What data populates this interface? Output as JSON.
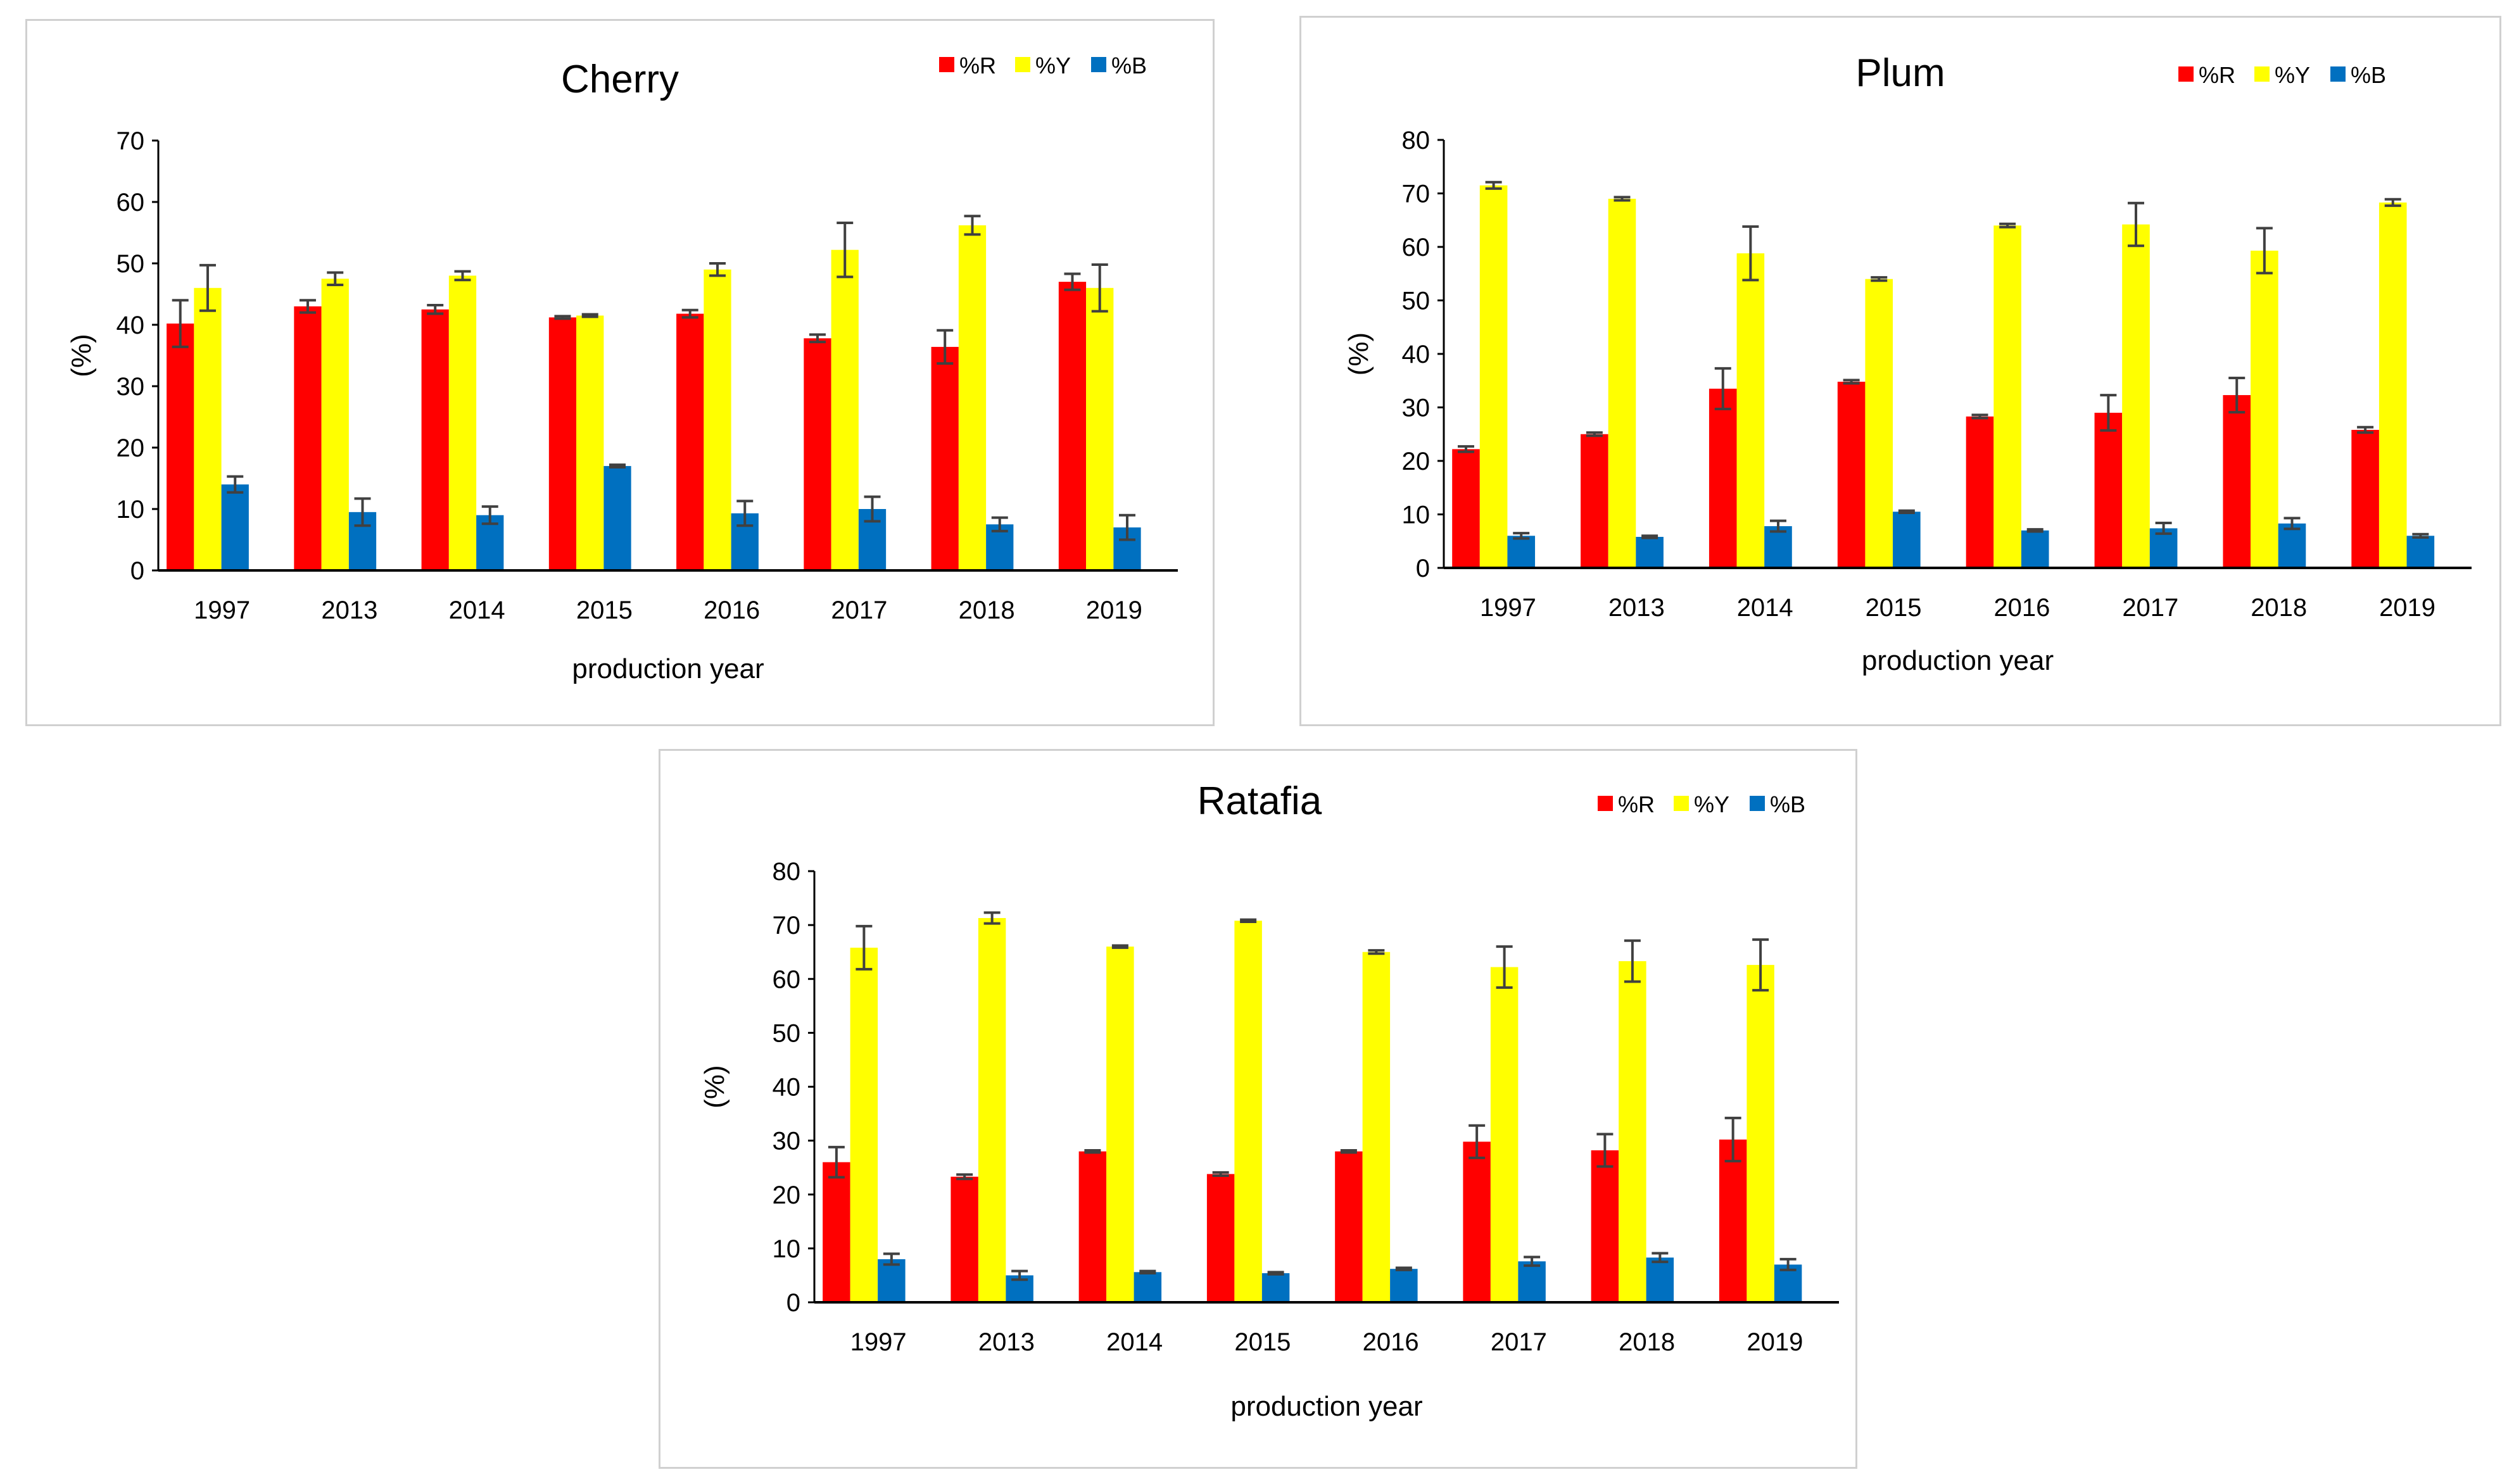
{
  "chart_data": [
    {
      "type": "bar",
      "title": "Cherry",
      "xlabel": "production year",
      "ylabel": "(%)",
      "ylim": [
        0,
        70
      ],
      "ytick_step": 10,
      "yticks": [
        "0",
        "10",
        "20",
        "30",
        "40",
        "50",
        "60",
        "70"
      ],
      "categories": [
        "1997",
        "2013",
        "2014",
        "2015",
        "2016",
        "2017",
        "2018",
        "2019"
      ],
      "legend_position": "top-right",
      "series": [
        {
          "name": "%R",
          "color": "#ff0000",
          "values": [
            40.2,
            43.0,
            42.5,
            41.2,
            41.8,
            37.8,
            36.4,
            47.0
          ],
          "errors": [
            3.8,
            1.0,
            0.7,
            0.2,
            0.6,
            0.6,
            2.7,
            1.3
          ]
        },
        {
          "name": "%Y",
          "color": "#ffff00",
          "values": [
            46.0,
            47.5,
            48.0,
            41.5,
            49.0,
            52.2,
            56.2,
            46.0
          ],
          "errors": [
            3.7,
            1.0,
            0.7,
            0.2,
            1.0,
            4.4,
            1.5,
            3.8
          ]
        },
        {
          "name": "%B",
          "color": "#0070c0",
          "values": [
            14.0,
            9.5,
            9.0,
            17.0,
            9.3,
            10.0,
            7.5,
            7.0
          ],
          "errors": [
            1.3,
            2.2,
            1.4,
            0.2,
            2.0,
            2.0,
            1.1,
            2.0
          ]
        }
      ]
    },
    {
      "type": "bar",
      "title": "Plum",
      "xlabel": "production year",
      "ylabel": "(%)",
      "ylim": [
        0,
        80
      ],
      "ytick_step": 10,
      "yticks": [
        "0",
        "10",
        "20",
        "30",
        "40",
        "50",
        "60",
        "70",
        "80"
      ],
      "categories": [
        "1997",
        "2013",
        "2014",
        "2015",
        "2016",
        "2017",
        "2018",
        "2019"
      ],
      "legend_position": "top-right",
      "series": [
        {
          "name": "%R",
          "color": "#ff0000",
          "values": [
            22.2,
            25.0,
            33.5,
            34.8,
            28.3,
            29.0,
            32.3,
            25.8
          ],
          "errors": [
            0.5,
            0.3,
            3.8,
            0.3,
            0.3,
            3.3,
            3.2,
            0.5
          ]
        },
        {
          "name": "%Y",
          "color": "#ffff00",
          "values": [
            71.5,
            69.0,
            58.8,
            54.0,
            64.0,
            64.2,
            59.3,
            68.3
          ],
          "errors": [
            0.6,
            0.3,
            5.0,
            0.3,
            0.3,
            4.0,
            4.2,
            0.6
          ]
        },
        {
          "name": "%B",
          "color": "#0070c0",
          "values": [
            6.0,
            5.8,
            7.8,
            10.5,
            7.0,
            7.4,
            8.3,
            6.0
          ],
          "errors": [
            0.5,
            0.2,
            1.0,
            0.2,
            0.2,
            1.0,
            1.0,
            0.3
          ]
        }
      ]
    },
    {
      "type": "bar",
      "title": "Ratafia",
      "xlabel": "production year",
      "ylabel": "(%)",
      "ylim": [
        0,
        80
      ],
      "ytick_step": 10,
      "yticks": [
        "0",
        "10",
        "20",
        "30",
        "40",
        "50",
        "60",
        "70",
        "80"
      ],
      "categories": [
        "1997",
        "2013",
        "2014",
        "2015",
        "2016",
        "2017",
        "2018",
        "2019"
      ],
      "legend_position": "top-right",
      "series": [
        {
          "name": "%R",
          "color": "#ff0000",
          "values": [
            26.0,
            23.3,
            28.0,
            23.8,
            28.0,
            29.8,
            28.2,
            30.2
          ],
          "errors": [
            2.8,
            0.4,
            0.2,
            0.3,
            0.2,
            3.0,
            3.0,
            4.0
          ]
        },
        {
          "name": "%Y",
          "color": "#ffff00",
          "values": [
            65.8,
            71.3,
            66.0,
            70.8,
            65.0,
            62.2,
            63.3,
            62.6
          ],
          "errors": [
            4.0,
            1.0,
            0.2,
            0.2,
            0.3,
            3.8,
            3.8,
            4.7
          ]
        },
        {
          "name": "%B",
          "color": "#0070c0",
          "values": [
            8.0,
            5.0,
            5.6,
            5.4,
            6.2,
            7.6,
            8.3,
            7.0
          ],
          "errors": [
            1.0,
            0.8,
            0.2,
            0.2,
            0.2,
            0.8,
            0.8,
            1.0
          ]
        }
      ]
    }
  ]
}
